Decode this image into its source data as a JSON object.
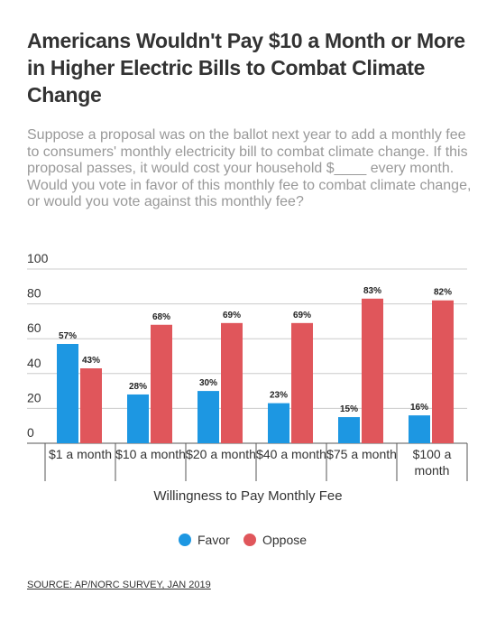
{
  "chart_data": {
    "type": "bar",
    "title": "Americans Wouldn't Pay $10 a Month or More in Higher Electric Bills to Combat Climate Change",
    "subtitle": "Suppose a proposal was on the ballot next year to add a monthly fee to consumers' monthly electricity bill to combat climate change. If this proposal passes, it would cost your household $____ every month. Would you vote in favor of this monthly fee to combat climate change, or would you vote against this monthly fee?",
    "x_label": "Willingness to Pay Monthly Fee",
    "categories": [
      "$1 a month",
      "$10 a month",
      "$20 a month",
      "$40 a month",
      "$75 a month",
      "$100 a month"
    ],
    "series": [
      {
        "name": "Favor",
        "color": "#1d97e2",
        "values": [
          57,
          28,
          30,
          23,
          15,
          16
        ],
        "value_labels": [
          "57%",
          "28%",
          "30%",
          "23%",
          "15%",
          "16%"
        ]
      },
      {
        "name": "Oppose",
        "color": "#e0565b",
        "values": [
          43,
          68,
          69,
          69,
          83,
          82
        ],
        "value_labels": [
          "43%",
          "68%",
          "69%",
          "69%",
          "83%",
          "82%"
        ]
      }
    ],
    "ylim": [
      0,
      100
    ],
    "yticks": [
      0,
      20,
      40,
      60,
      80,
      100
    ],
    "grid": true,
    "legend": "bottom",
    "source": "SOURCE: AP/NORC SURVEY, JAN 2019"
  }
}
